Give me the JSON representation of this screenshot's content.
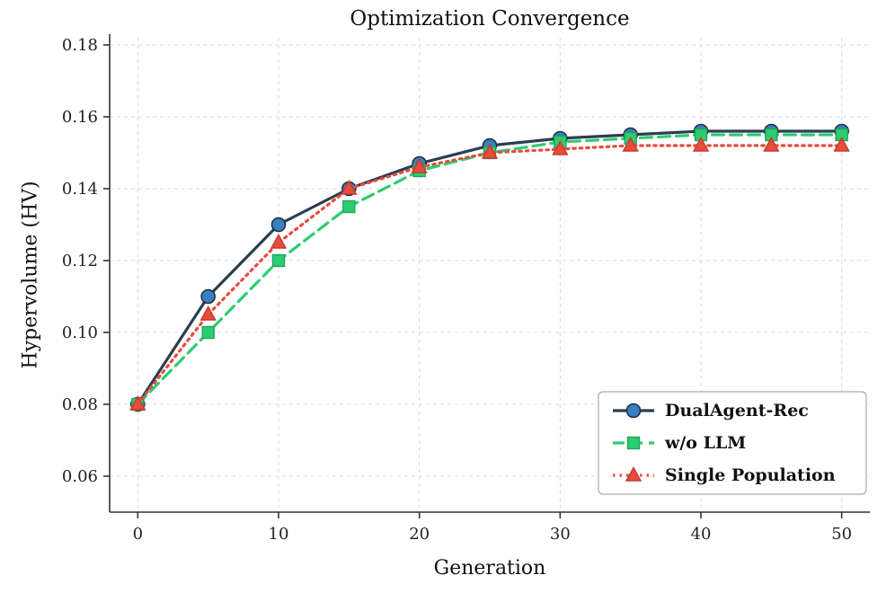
{
  "page": {
    "background": "#ffffff"
  },
  "chart_data": {
    "type": "line",
    "title": "Optimization Convergence",
    "xlabel": "Generation",
    "ylabel": "Hypervolume (HV)",
    "x": [
      0,
      5,
      10,
      15,
      20,
      25,
      30,
      35,
      40,
      45,
      50
    ],
    "xticks": [
      0,
      10,
      20,
      30,
      40,
      50
    ],
    "yticks": [
      0.06,
      0.08,
      0.1,
      0.12,
      0.14,
      0.16,
      0.18
    ],
    "xlim": [
      -2,
      52
    ],
    "ylim": [
      0.05,
      0.182
    ],
    "grid": true,
    "grid_color": "#d9d9d9",
    "axis_color": "#333333",
    "legend_position": "lower right",
    "series": [
      {
        "name": "DualAgent-Rec",
        "color": "#2c3e50",
        "linestyle": "solid",
        "marker": "circle",
        "marker_face": "#3a7fc1",
        "marker_edge": "#22303f",
        "values": [
          0.08,
          0.11,
          0.13,
          0.14,
          0.147,
          0.152,
          0.154,
          0.155,
          0.156,
          0.156,
          0.156
        ]
      },
      {
        "name": "w/o LLM",
        "color": "#2ecc71",
        "linestyle": "dashed",
        "marker": "square",
        "marker_face": "#2ecc71",
        "marker_edge": "#1ea65a",
        "values": [
          0.08,
          0.1,
          0.12,
          0.135,
          0.145,
          0.15,
          0.153,
          0.154,
          0.155,
          0.155,
          0.155
        ]
      },
      {
        "name": "Single Population",
        "color": "#e74c3c",
        "linestyle": "dotted",
        "marker": "triangle",
        "marker_face": "#e74c3c",
        "marker_edge": "#c8382a",
        "values": [
          0.08,
          0.105,
          0.125,
          0.14,
          0.146,
          0.15,
          0.151,
          0.152,
          0.152,
          0.152,
          0.152
        ]
      }
    ]
  }
}
